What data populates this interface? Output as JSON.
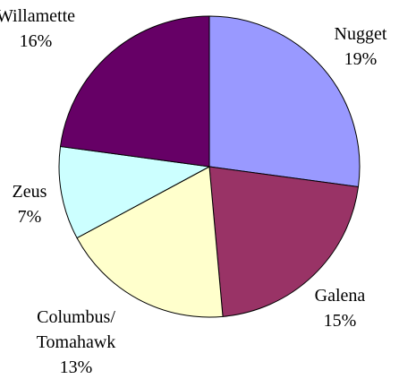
{
  "chart_data": {
    "type": "pie",
    "categories": [
      "Nugget",
      "Galena",
      "Columbus/\nTomahawk",
      "Zeus",
      "Willamette"
    ],
    "values": [
      19,
      15,
      13,
      7,
      16
    ],
    "value_labels": [
      "19%",
      "15%",
      "13%",
      "7%",
      "16%"
    ],
    "colors": [
      "#9999ff",
      "#993366",
      "#ffffcc",
      "#ccffff",
      "#660066"
    ]
  }
}
